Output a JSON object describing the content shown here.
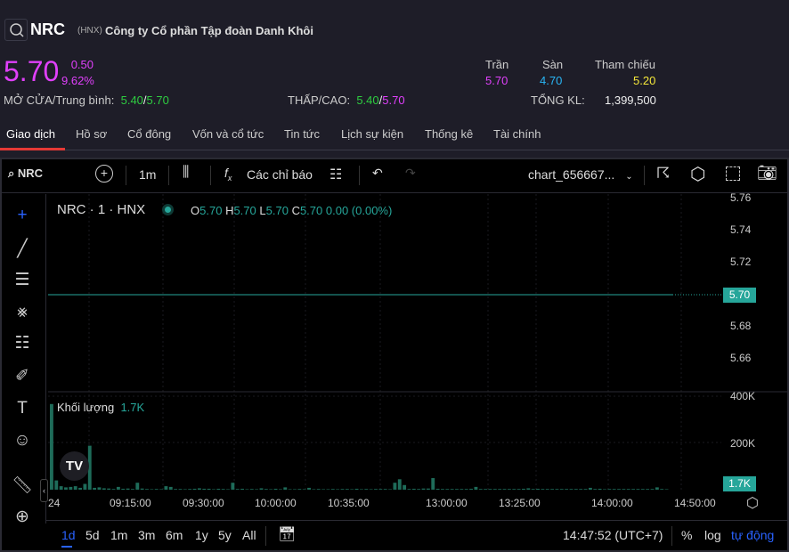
{
  "header": {
    "ticker": "NRC",
    "exchange": "(HNX)",
    "company": "Công ty Cổ phần Tập đoàn Danh Khôi",
    "price": "5.70",
    "change": "0.50",
    "change_pct": "9.62%",
    "open_avg_label": "MỞ CỬA/Trung bình:",
    "open": "5.40",
    "avg": "5.70",
    "low_high_label": "THẤP/CAO:",
    "low": "5.40",
    "high": "5.70",
    "ceiling_label": "Trần",
    "ceiling": "5.70",
    "floor_label": "Sàn",
    "floor": "4.70",
    "ref_label": "Tham chiếu",
    "ref": "5.20",
    "total_vol_label": "TỔNG KL:",
    "total_vol": "1,399,500"
  },
  "tabs": [
    {
      "label": "Giao dịch",
      "active": true
    },
    {
      "label": "Hồ sơ"
    },
    {
      "label": "Cổ đông"
    },
    {
      "label": "Vốn và cổ tức"
    },
    {
      "label": "Tin tức"
    },
    {
      "label": "Lịch sự kiện"
    },
    {
      "label": "Thống kê"
    },
    {
      "label": "Tài chính"
    }
  ],
  "toolbar": {
    "symbol": "NRC",
    "interval": "1m",
    "indicators": "Các chỉ báo",
    "layout_name": "chart_656667..."
  },
  "legend": {
    "title": "NRC · 1 · HNX",
    "o_label": "O",
    "o": "5.70",
    "h_label": "H",
    "h": "5.70",
    "l_label": "L",
    "l": "5.70",
    "c_label": "C",
    "c": "5.70",
    "change": "0.00 (0.00%)",
    "volume_label": "Khối lượng",
    "volume": "1.7K"
  },
  "price_axis": [
    "5.76",
    "5.74",
    "5.72",
    "5.70",
    "5.68",
    "5.66"
  ],
  "current_price_tag": "5.70",
  "volume_axis": [
    "400K",
    "200K"
  ],
  "volume_tag": "1.7K",
  "time_axis": [
    "24",
    "09:15:00",
    "09:30:00",
    "10:00:00",
    "10:35:00",
    "13:00:00",
    "13:25:00",
    "14:00:00",
    "14:50:00"
  ],
  "ranges": [
    {
      "label": "1d",
      "active": true
    },
    {
      "label": "5d"
    },
    {
      "label": "1m"
    },
    {
      "label": "3m"
    },
    {
      "label": "6m"
    },
    {
      "label": "1y"
    },
    {
      "label": "5y"
    },
    {
      "label": "All"
    }
  ],
  "clock": "14:47:52 (UTC+7)",
  "scale_buttons": {
    "percent": "%",
    "log": "log",
    "auto": "tự động"
  },
  "colors": {
    "up": "#26a69a",
    "magenta": "#e040fb",
    "green": "#2ecc40",
    "floor": "#29b6f6",
    "ref": "#f5e83a",
    "accent": "#2962ff"
  },
  "chart_data": {
    "type": "bar",
    "price_line": 5.7,
    "price_ylim": [
      5.65,
      5.77
    ],
    "volume_ylim": [
      0,
      420000
    ],
    "volumes_k": [
      370,
      40,
      15,
      10,
      12,
      15,
      8,
      25,
      190,
      8,
      10,
      6,
      5,
      3,
      12,
      4,
      5,
      3,
      30,
      5,
      3,
      2,
      3,
      2,
      15,
      12,
      3,
      3,
      2,
      3,
      4,
      6,
      4,
      4,
      2,
      4,
      3,
      2,
      30,
      3,
      4,
      2,
      3,
      2,
      6,
      3,
      2,
      4,
      2,
      10,
      2,
      2,
      3,
      2,
      8,
      2,
      3,
      2,
      2,
      3,
      2,
      3,
      3,
      2,
      4,
      2,
      3,
      2,
      3,
      3,
      3,
      2,
      30,
      45,
      20,
      3,
      4,
      3,
      5,
      5,
      50,
      4,
      3,
      3,
      3,
      3,
      3,
      3,
      4,
      12,
      3,
      3,
      3,
      3,
      3,
      3,
      3,
      3,
      3,
      4,
      6,
      3,
      4,
      3,
      3,
      3,
      3,
      3,
      3,
      3,
      3,
      3,
      3,
      8,
      3,
      4,
      2,
      3,
      3,
      3,
      3,
      3,
      3,
      3,
      3,
      3,
      3,
      10,
      3,
      2
    ]
  }
}
